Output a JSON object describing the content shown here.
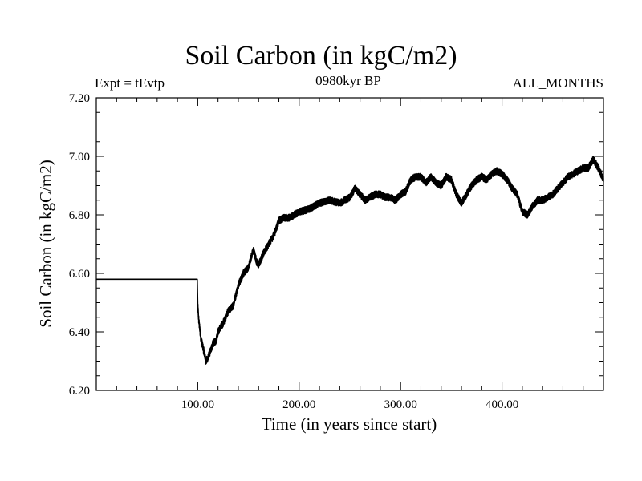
{
  "chart_data": {
    "type": "line",
    "title": "Soil Carbon (in kgC/m2)",
    "subtitle_left": "Expt = tEvtp",
    "subtitle_center": "0980kyr BP",
    "subtitle_right": "ALL_MONTHS",
    "xlabel": "Time (in years since start)",
    "ylabel": "Soil Carbon (in kgC/m2)",
    "xlim": [
      0,
      500
    ],
    "ylim": [
      6.2,
      7.2
    ],
    "x_ticks": [
      100,
      200,
      300,
      400
    ],
    "x_tick_labels": [
      "100.00",
      "200.00",
      "300.00",
      "400.00"
    ],
    "y_ticks": [
      6.2,
      6.4,
      6.6,
      6.8,
      7.0,
      7.2
    ],
    "y_tick_labels": [
      "6.20",
      "6.40",
      "6.60",
      "6.80",
      "7.00",
      "7.20"
    ],
    "grid": false,
    "line_color": "#000000",
    "series": [
      {
        "name": "Soil Carbon",
        "x": [
          0,
          99.5,
          100,
          101,
          102,
          103,
          105,
          107,
          108,
          110,
          112,
          115,
          118,
          120,
          125,
          130,
          135,
          140,
          145,
          150,
          153,
          155,
          158,
          160,
          165,
          170,
          175,
          180,
          185,
          190,
          195,
          200,
          210,
          220,
          230,
          240,
          250,
          255,
          260,
          265,
          270,
          275,
          280,
          285,
          290,
          295,
          300,
          305,
          310,
          315,
          320,
          325,
          330,
          335,
          340,
          345,
          350,
          355,
          360,
          365,
          370,
          375,
          380,
          385,
          390,
          395,
          400,
          405,
          410,
          415,
          420,
          425,
          430,
          435,
          440,
          445,
          450,
          455,
          460,
          465,
          470,
          475,
          480,
          485,
          490,
          495,
          500
        ],
        "y": [
          6.58,
          6.58,
          6.49,
          6.44,
          6.41,
          6.38,
          6.35,
          6.32,
          6.3,
          6.31,
          6.33,
          6.36,
          6.37,
          6.4,
          6.43,
          6.47,
          6.49,
          6.56,
          6.6,
          6.62,
          6.66,
          6.68,
          6.64,
          6.63,
          6.67,
          6.7,
          6.73,
          6.78,
          6.79,
          6.79,
          6.8,
          6.81,
          6.82,
          6.84,
          6.85,
          6.84,
          6.86,
          6.89,
          6.87,
          6.85,
          6.86,
          6.87,
          6.87,
          6.86,
          6.86,
          6.85,
          6.87,
          6.88,
          6.92,
          6.93,
          6.93,
          6.91,
          6.93,
          6.91,
          6.9,
          6.93,
          6.92,
          6.87,
          6.84,
          6.87,
          6.9,
          6.92,
          6.93,
          6.92,
          6.94,
          6.95,
          6.94,
          6.92,
          6.89,
          6.87,
          6.81,
          6.8,
          6.83,
          6.85,
          6.85,
          6.86,
          6.87,
          6.89,
          6.91,
          6.93,
          6.94,
          6.95,
          6.96,
          6.96,
          6.99,
          6.96,
          6.92
        ]
      }
    ]
  }
}
